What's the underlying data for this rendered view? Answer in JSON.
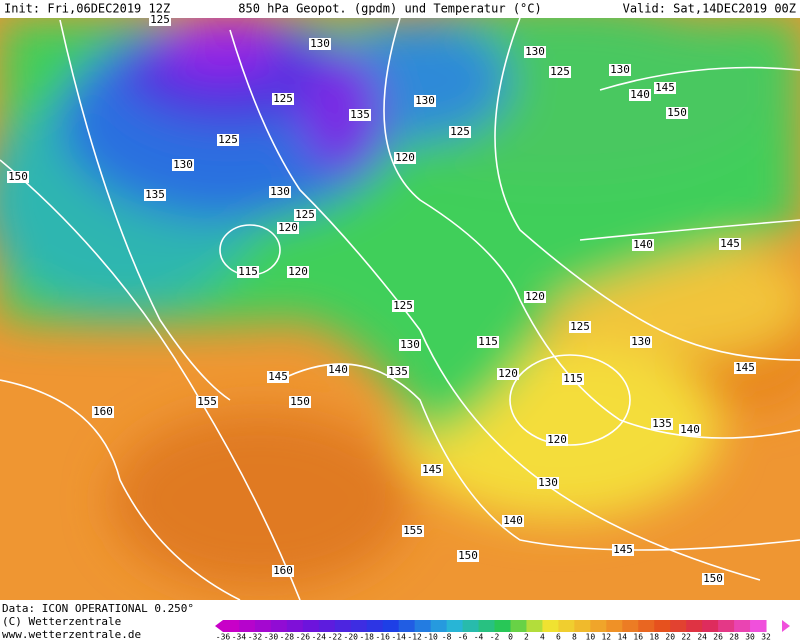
{
  "header": {
    "init": "Init: Fri,06DEC2019 12Z",
    "title": "850 hPa Geopot. (gpdm) und Temperatur (°C)",
    "valid": "Valid: Sat,14DEC2019 00Z"
  },
  "footer": {
    "data": "Data: ICON OPERATIONAL 0.250°",
    "copyright": "(C) Wetterzentrale",
    "url": "www.wetterzentrale.de"
  },
  "colorbar": {
    "labels": [
      -36,
      -34,
      -32,
      -30,
      -28,
      -26,
      -24,
      -22,
      -20,
      -18,
      -16,
      -14,
      -12,
      -10,
      -8,
      -6,
      -4,
      -2,
      0,
      2,
      4,
      6,
      8,
      10,
      12,
      14,
      16,
      18,
      20,
      22,
      24,
      26,
      28,
      30,
      32
    ]
  },
  "contour_labels": [
    125,
    130,
    125,
    125,
    130,
    135,
    150,
    130,
    125,
    120,
    115,
    120,
    135,
    130,
    125,
    120,
    130,
    125,
    130,
    140,
    145,
    150,
    140,
    145,
    120,
    125,
    130,
    125,
    130,
    115,
    145,
    140,
    135,
    120,
    115,
    155,
    150,
    160,
    120,
    135,
    140,
    145,
    145,
    130,
    140,
    155,
    150,
    145,
    160,
    150
  ]
}
